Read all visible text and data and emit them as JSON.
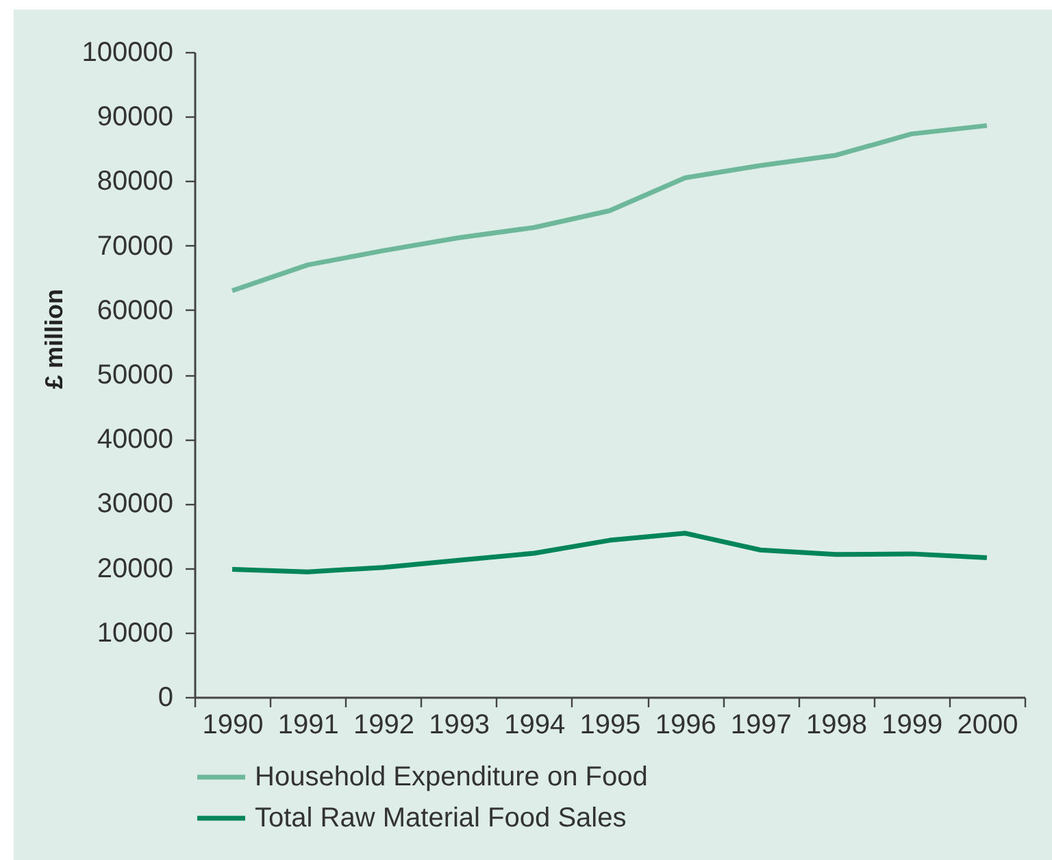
{
  "chart_data": {
    "type": "line",
    "ylabel": "£ million",
    "categories": [
      "1990",
      "1991",
      "1992",
      "1993",
      "1994",
      "1995",
      "1996",
      "1997",
      "1998",
      "1999",
      "2000"
    ],
    "series": [
      {
        "name": "Household Expenditure on Food",
        "color": "#6db89a",
        "values": [
          63000,
          67000,
          69200,
          71200,
          72800,
          75400,
          80500,
          82400,
          84000,
          87300,
          88600
        ]
      },
      {
        "name": "Total Raw Material Food Sales",
        "color": "#00855a",
        "values": [
          19800,
          19400,
          20100,
          21200,
          22300,
          24300,
          25400,
          22800,
          22100,
          22200,
          21600
        ]
      }
    ],
    "ylim": [
      0,
      100000
    ],
    "yticks": [
      0,
      10000,
      20000,
      30000,
      40000,
      50000,
      60000,
      70000,
      80000,
      90000,
      100000
    ],
    "legend": "bottom left",
    "line_style": "solid"
  }
}
